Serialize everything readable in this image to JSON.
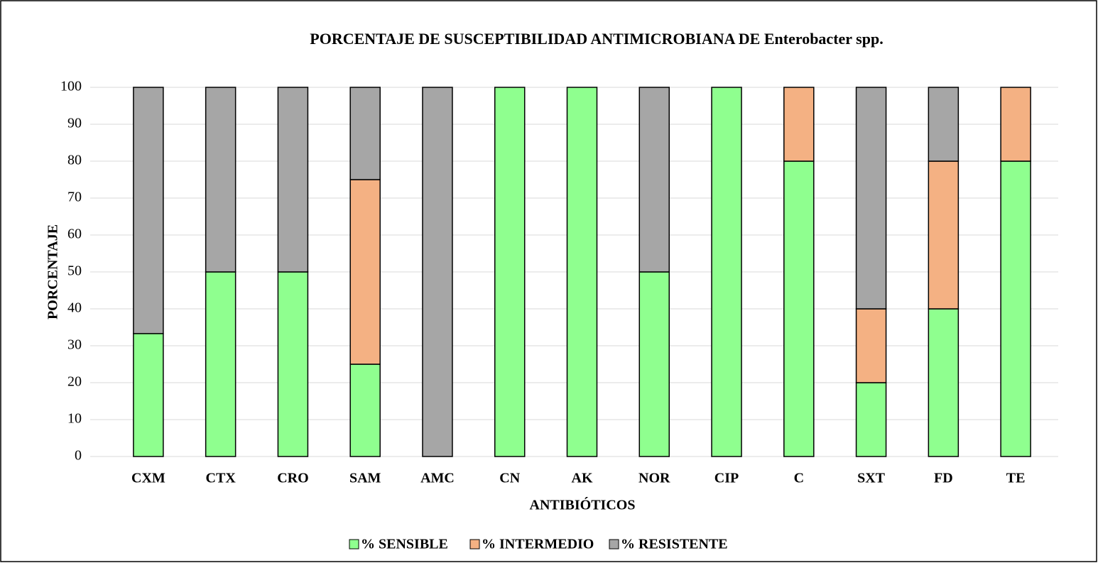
{
  "chart_data": {
    "type": "stacked_bar",
    "title": "PORCENTAJE DE SUSCEPTIBILIDAD ANTIMICROBIANA DE Enterobacter spp.",
    "x_label": "ANTIBIÓTICOS",
    "y_label": "PORCENTAJE",
    "categories": [
      "CXM",
      "CTX",
      "CRO",
      "SAM",
      "AMC",
      "CN",
      "AK",
      "NOR",
      "CIP",
      "C",
      "SXT",
      "FD",
      "TE"
    ],
    "series": [
      {
        "name": "% SENSIBLE",
        "color": "#8fff8f",
        "values": [
          33.3,
          50,
          50,
          25,
          0,
          100,
          100,
          50,
          100,
          80,
          20,
          40,
          80
        ]
      },
      {
        "name": "% INTERMEDIO",
        "color": "#f4b183",
        "values": [
          0,
          0,
          0,
          50,
          0,
          0,
          0,
          0,
          0,
          20,
          20,
          40,
          20
        ]
      },
      {
        "name": "% RESISTENTE",
        "color": "#a6a6a6",
        "values": [
          66.7,
          50,
          50,
          25,
          100,
          0,
          0,
          50,
          0,
          0,
          60,
          20,
          0
        ]
      }
    ],
    "ylim": [
      0,
      100
    ],
    "yticks": [
      0,
      10,
      20,
      30,
      40,
      50,
      60,
      70,
      80,
      90,
      100
    ],
    "grid": true,
    "legend": "bottom"
  }
}
